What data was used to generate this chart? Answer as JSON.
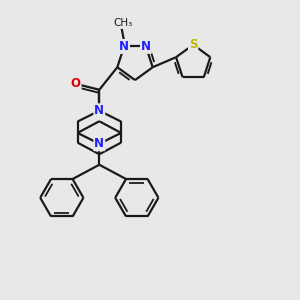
{
  "background_color": "#e8e8e8",
  "bond_color": "#1a1a1a",
  "N_color": "#2020ff",
  "O_color": "#dd0000",
  "S_color": "#bbbb00",
  "line_width": 1.6,
  "figsize": [
    3.0,
    3.0
  ],
  "dpi": 100,
  "xlim": [
    -1.5,
    8.5
  ],
  "ylim": [
    -5.5,
    4.0
  ]
}
